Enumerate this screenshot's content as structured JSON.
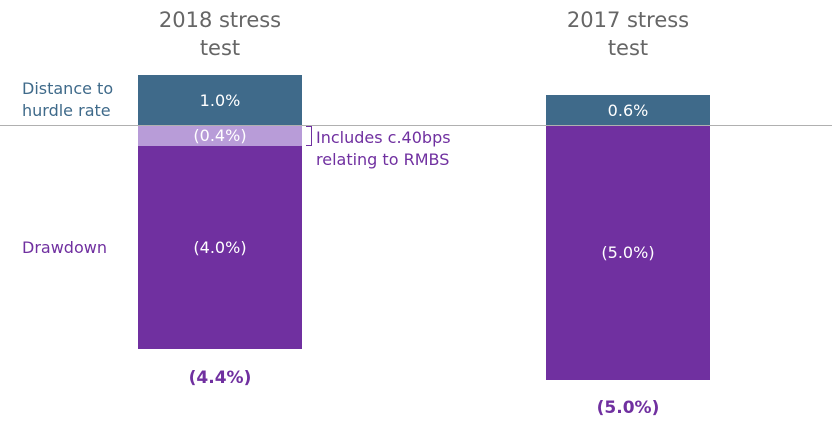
{
  "chart_data": {
    "type": "stacked-bar",
    "categories": [
      "2018 stress test",
      "2017 stress test"
    ],
    "ylim": [
      -5,
      1
    ],
    "series": [
      {
        "name": "Distance to hurdle rate",
        "color": "#3f6a8a",
        "values": [
          1.0,
          0.6
        ],
        "value_labels": [
          "1.0%",
          "0.6%"
        ]
      },
      {
        "color": "#b89cd8",
        "values": [
          -0.4,
          null
        ],
        "value_labels": [
          "(0.4%)",
          null
        ],
        "annotation": "Includes c.40bps relating to RMBS"
      },
      {
        "name": "Drawdown",
        "color": "#7030a0",
        "values": [
          -4.0,
          -5.0
        ],
        "value_labels": [
          "(4.0%)",
          "(5.0%)"
        ]
      }
    ],
    "totals": [
      -4.4,
      -5.0
    ],
    "total_labels": [
      "(4.4%)",
      "(5.0%)"
    ],
    "baseline_color": "#b0b0b0"
  }
}
